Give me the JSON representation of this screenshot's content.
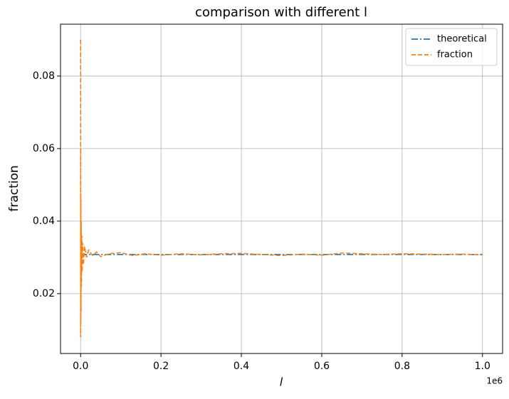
{
  "chart_data": {
    "type": "line",
    "title": "comparison with different l",
    "x_label": "l",
    "y_label": "fraction",
    "x_offset_label": "1e6",
    "xlim": [
      -50000,
      1050000
    ],
    "ylim": [
      0.0035,
      0.0943
    ],
    "xticks": [
      {
        "value": 0,
        "label": "0.0"
      },
      {
        "value": 200000,
        "label": "0.2"
      },
      {
        "value": 400000,
        "label": "0.4"
      },
      {
        "value": 600000,
        "label": "0.6"
      },
      {
        "value": 800000,
        "label": "0.8"
      },
      {
        "value": 1000000,
        "label": "1.0"
      }
    ],
    "yticks": [
      0.02,
      0.04,
      0.06,
      0.08
    ],
    "grid": true,
    "legend": "upper-right",
    "series": [
      {
        "name": "theoretical",
        "color": "#1f77b4",
        "dash": "dash-dot",
        "x": [
          1,
          1000000
        ],
        "values": [
          0.0308,
          0.0308
        ]
      },
      {
        "name": "fraction",
        "color": "#ff7f0e",
        "dash": "dashed",
        "x": [
          100,
          200,
          300,
          500,
          700,
          1000,
          1500,
          2000,
          3000,
          4000,
          5000,
          7000,
          10000,
          15000,
          20000,
          30000,
          40000,
          50000,
          70000,
          100000,
          130000,
          160000,
          200000,
          250000,
          300000,
          350000,
          400000,
          450000,
          500000,
          550000,
          600000,
          650000,
          700000,
          750000,
          800000,
          850000,
          900000,
          950000,
          1000000
        ],
        "values": [
          0.09,
          0.008,
          0.06,
          0.012,
          0.046,
          0.015,
          0.04,
          0.022,
          0.036,
          0.026,
          0.034,
          0.028,
          0.033,
          0.03,
          0.032,
          0.0305,
          0.0315,
          0.0302,
          0.031,
          0.0313,
          0.0305,
          0.031,
          0.0306,
          0.031,
          0.0307,
          0.031,
          0.0311,
          0.0308,
          0.0305,
          0.0309,
          0.0306,
          0.0312,
          0.031,
          0.0308,
          0.031,
          0.0309,
          0.0308,
          0.0309,
          0.0307
        ]
      }
    ]
  }
}
